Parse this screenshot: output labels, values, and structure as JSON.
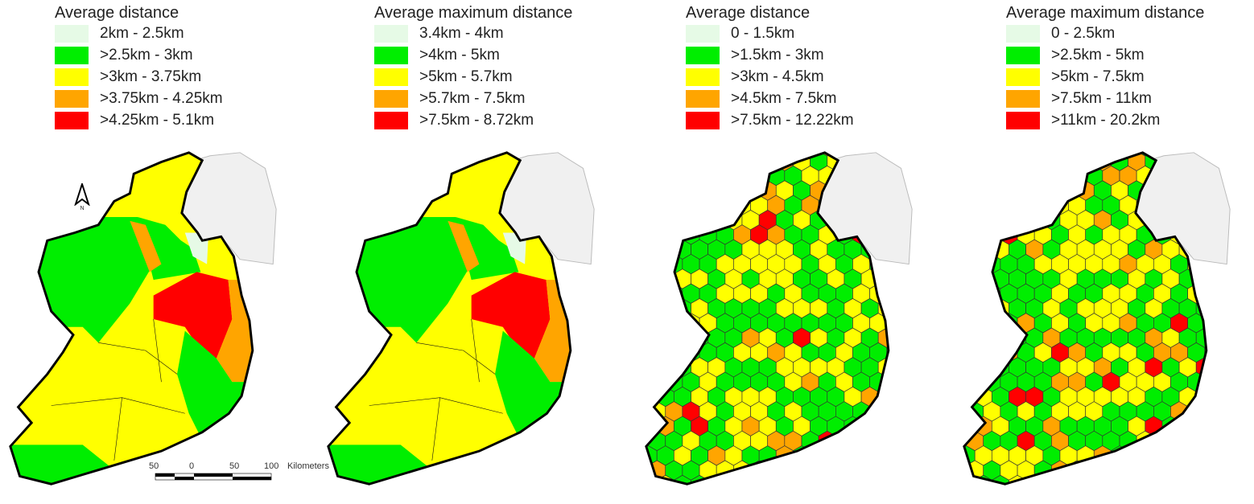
{
  "panels": [
    {
      "legend_title": "Average distance",
      "type": "regions",
      "classes": [
        "2km - 2.5km",
        ">2.5km - 3km",
        ">3km - 3.75km",
        ">3.75km - 4.25km",
        ">4.25km - 5.1km"
      ]
    },
    {
      "legend_title": "Average maximum distance",
      "type": "regions",
      "classes": [
        "3.4km - 4km",
        ">4km - 5km",
        ">5km - 5.7km",
        ">5.7km - 7.5km",
        ">7.5km - 8.72km"
      ]
    },
    {
      "legend_title": "Average distance",
      "type": "hexagons",
      "classes": [
        "0 - 1.5km",
        ">1.5km - 3km",
        ">3km - 4.5km",
        ">4.5km - 7.5km",
        ">7.5km - 12.22km"
      ]
    },
    {
      "legend_title": "Average maximum distance",
      "type": "hexagons",
      "classes": [
        "0 - 2.5km",
        ">2.5km - 5km",
        ">5km - 7.5km",
        ">7.5km - 11km",
        ">11km - 20.2km"
      ]
    }
  ],
  "class_colors": [
    "#e6fae6",
    "#00ee00",
    "#ffff00",
    "#ffa500",
    "#ff0000"
  ],
  "north_arrow": {
    "label": "N"
  },
  "scale_bar": {
    "ticks": [
      "50",
      "0",
      "50",
      "100"
    ],
    "unit": "Kilometers"
  }
}
